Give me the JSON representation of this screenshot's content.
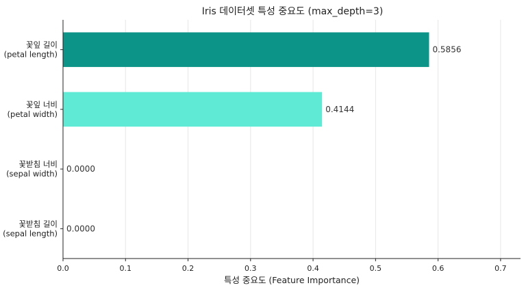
{
  "chart_data": {
    "type": "bar",
    "orientation": "horizontal",
    "title": "Iris 데이터셋 특성 중요도 (max_depth=3)",
    "xlabel": "특성 중요도 (Feature Importance)",
    "ylabel": "",
    "xlim": [
      0,
      0.73
    ],
    "xticks": [
      0.0,
      0.1,
      0.2,
      0.3,
      0.4,
      0.5,
      0.6,
      0.7
    ],
    "xtick_labels": [
      "0.0",
      "0.1",
      "0.2",
      "0.3",
      "0.4",
      "0.5",
      "0.6",
      "0.7"
    ],
    "grid": "vertical",
    "categories": [
      {
        "line1": "꽃잎 길이",
        "line2": "(petal length)"
      },
      {
        "line1": "꽃잎 너비",
        "line2": "(petal width)"
      },
      {
        "line1": "꽃받침 너비",
        "line2": "(sepal width)"
      },
      {
        "line1": "꽃받침 길이",
        "line2": "(sepal length)"
      }
    ],
    "values": [
      0.5856,
      0.4144,
      0.0,
      0.0
    ],
    "value_labels": [
      "0.5856",
      "0.4144",
      "0.0000",
      "0.0000"
    ],
    "colors": [
      "#0d9488",
      "#5eead4",
      "#99f6e4",
      "#ccfbf1"
    ]
  }
}
